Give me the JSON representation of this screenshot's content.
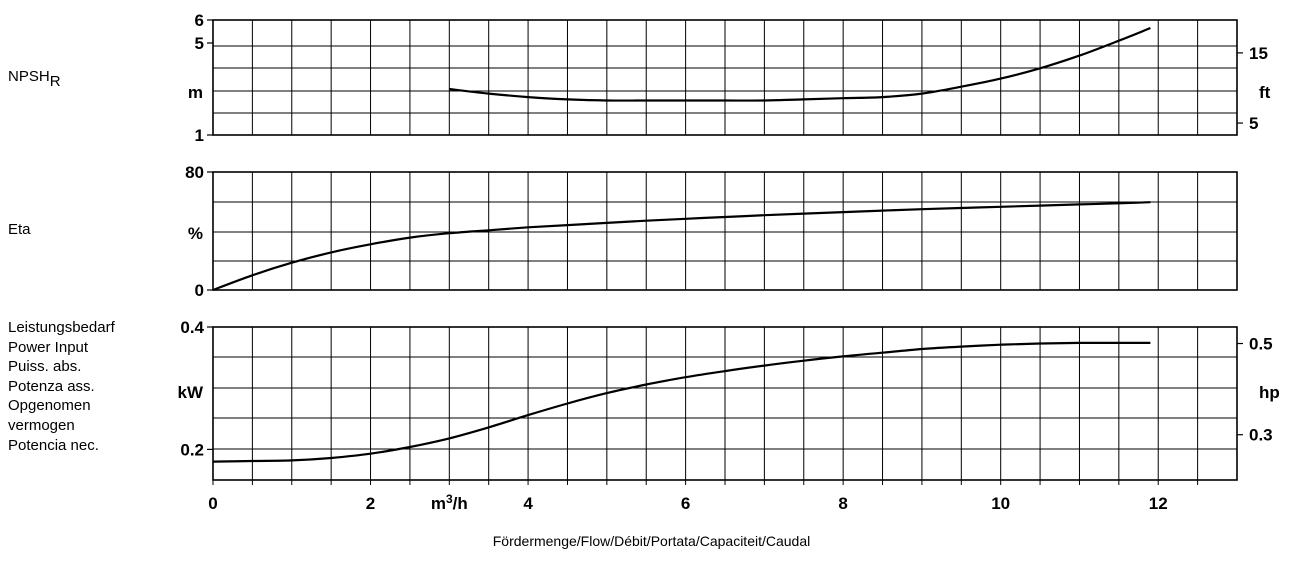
{
  "chart_data": [
    {
      "type": "line",
      "name_label": "NPSH",
      "name_sub": "R",
      "unit_left": "m",
      "unit_right": "ft",
      "y_ticks_left": [
        {
          "v": 6,
          "label": "6"
        },
        {
          "v": 5,
          "label": "5"
        },
        {
          "v": 1,
          "label": "1"
        }
      ],
      "y_ticks_right": [
        {
          "v": 4.57,
          "label": "15"
        },
        {
          "v": 1.52,
          "label": "5"
        }
      ],
      "ylim": [
        1,
        6
      ],
      "x": [
        3,
        3.5,
        4,
        4.5,
        5,
        5.5,
        6,
        6.5,
        7,
        7.5,
        8,
        8.5,
        9,
        9.5,
        10,
        10.5,
        11,
        11.5,
        11.9
      ],
      "y": [
        3.0,
        2.8,
        2.65,
        2.55,
        2.5,
        2.5,
        2.5,
        2.5,
        2.5,
        2.55,
        2.6,
        2.65,
        2.8,
        3.1,
        3.45,
        3.9,
        4.45,
        5.1,
        5.65
      ]
    },
    {
      "type": "line",
      "name_label": "Eta",
      "unit_left": "%",
      "y_ticks_left": [
        {
          "v": 80,
          "label": "80"
        },
        {
          "v": 0,
          "label": "0"
        }
      ],
      "ylim": [
        0,
        80
      ],
      "x": [
        0,
        0.5,
        1,
        1.5,
        2,
        2.5,
        3,
        3.5,
        4,
        4.5,
        5,
        5.5,
        6,
        6.5,
        7,
        7.5,
        8,
        8.5,
        9,
        9.5,
        10,
        10.5,
        11,
        11.5,
        11.9
      ],
      "y": [
        0,
        10,
        18.5,
        25.5,
        31,
        35.5,
        38.5,
        40.5,
        42.5,
        44,
        45.5,
        47,
        48.3,
        49.5,
        50.7,
        51.8,
        52.8,
        53.8,
        54.8,
        55.6,
        56.4,
        57.2,
        58,
        58.8,
        59.5
      ]
    },
    {
      "type": "line",
      "name_lines": [
        "Leistungsbedarf",
        "Power Input",
        "Puiss. abs.",
        "Potenza ass.",
        "Opgenomen",
        "vermogen",
        "Potencia nec."
      ],
      "unit_left": "kW",
      "unit_right": "hp",
      "y_ticks_left": [
        {
          "v": 0.4,
          "label": "0.4"
        },
        {
          "v": 0.2,
          "label": "0.2"
        }
      ],
      "y_ticks_right": [
        {
          "v": 0.373,
          "label": "0.5"
        },
        {
          "v": 0.224,
          "label": "0.3"
        }
      ],
      "ylim": [
        0.15,
        0.4
      ],
      "x": [
        0,
        0.5,
        1,
        1.5,
        2,
        2.5,
        3,
        3.5,
        4,
        4.5,
        5,
        5.5,
        6,
        6.5,
        7,
        7.5,
        8,
        8.5,
        9,
        9.5,
        10,
        10.5,
        11,
        11.5,
        11.9
      ],
      "y": [
        0.18,
        0.181,
        0.182,
        0.186,
        0.193,
        0.204,
        0.218,
        0.236,
        0.256,
        0.275,
        0.292,
        0.306,
        0.318,
        0.328,
        0.337,
        0.345,
        0.352,
        0.358,
        0.364,
        0.368,
        0.371,
        0.373,
        0.374,
        0.374,
        0.374
      ]
    }
  ],
  "x_axis": {
    "xlim": [
      0,
      13
    ],
    "ticks": [
      {
        "v": 0,
        "label": "0"
      },
      {
        "v": 2,
        "label": "2"
      },
      {
        "v": 4,
        "label": "4"
      },
      {
        "v": 6,
        "label": "6"
      },
      {
        "v": 8,
        "label": "8"
      },
      {
        "v": 10,
        "label": "10"
      },
      {
        "v": 12,
        "label": "12"
      }
    ],
    "unit": "m",
    "unit_sup": "3",
    "unit_tail": "/h",
    "xlabel": "Fördermenge/Flow/Débit/Portata/Capaciteit/Caudal"
  },
  "grid": true
}
